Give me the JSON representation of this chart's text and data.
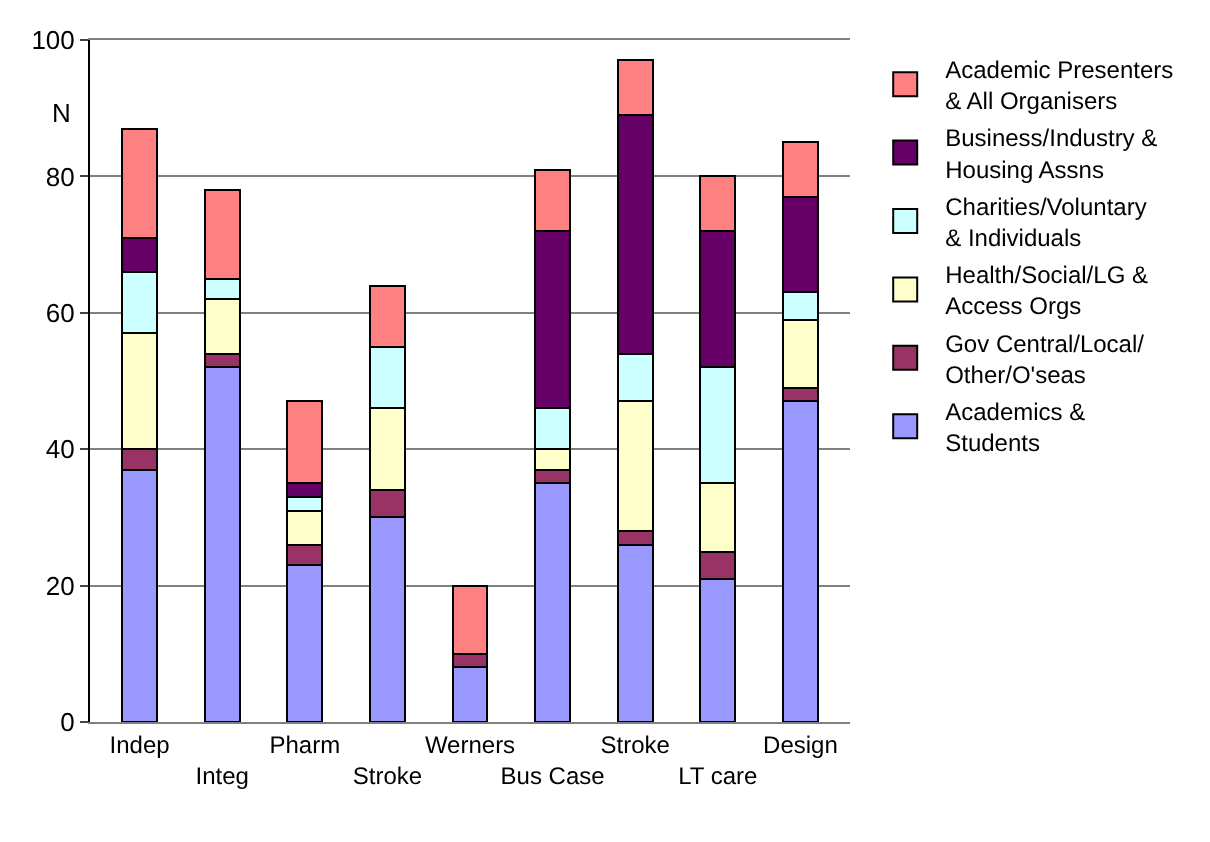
{
  "chart_data": {
    "type": "bar",
    "stacked": true,
    "ylabel": "N",
    "categories": [
      "Indep",
      "Integ",
      "Pharm",
      "Stroke",
      "Werners",
      "Bus Case",
      "Stroke",
      "LT care",
      "Design"
    ],
    "series": [
      {
        "name": "Academics & Students",
        "color": "#9999ff",
        "values": [
          37,
          52,
          23,
          30,
          8,
          35,
          26,
          21,
          47
        ]
      },
      {
        "name": "Gov Central/Local/ Other/O'seas",
        "color": "#993366",
        "values": [
          3,
          2,
          3,
          4,
          2,
          2,
          2,
          4,
          2
        ]
      },
      {
        "name": "Health/Social/LG & Access Orgs",
        "color": "#ffffcc",
        "values": [
          17,
          8,
          5,
          12,
          0,
          3,
          19,
          10,
          10
        ]
      },
      {
        "name": "Charities/Voluntary & Individuals",
        "color": "#ccffff",
        "values": [
          9,
          3,
          2,
          9,
          0,
          6,
          7,
          17,
          4
        ]
      },
      {
        "name": "Business/Industry & Housing Assns",
        "color": "#660066",
        "values": [
          5,
          0,
          2,
          0,
          0,
          26,
          35,
          20,
          14
        ]
      },
      {
        "name": "Academic Presenters & All Organisers",
        "color": "#ff8080",
        "values": [
          16,
          13,
          12,
          9,
          10,
          9,
          8,
          8,
          8
        ]
      }
    ],
    "ylim": [
      0,
      100
    ],
    "yticks": [
      0,
      20,
      40,
      60,
      80,
      100
    ],
    "grid": "y",
    "legend": "right"
  }
}
